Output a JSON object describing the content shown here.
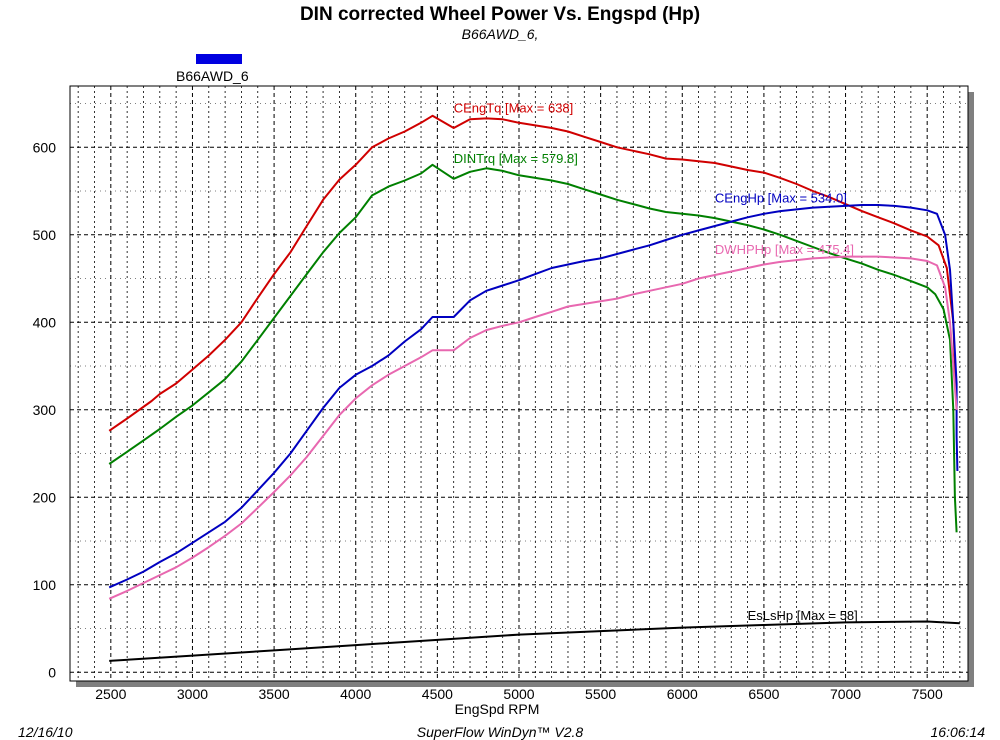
{
  "header": {
    "title": "DIN corrected Wheel Power Vs. Engspd (Hp)",
    "subtitle": "B66AWD_6,"
  },
  "legend": {
    "label": "B66AWD_6",
    "color": "#0000e0"
  },
  "footer": {
    "date": "12/16/10",
    "software": "SuperFlow WinDyn™ V2.8",
    "time": "16:06:14"
  },
  "chart_data": {
    "type": "line",
    "title": "DIN corrected Wheel Power Vs. Engspd (Hp)",
    "subtitle": "B66AWD_6,",
    "xlabel": "EngSpd  RPM",
    "ylabel": "",
    "xlim": [
      2250,
      7750
    ],
    "ylim": [
      -10,
      670
    ],
    "xticks": [
      2500,
      3000,
      3500,
      4000,
      4500,
      5000,
      5500,
      6000,
      6500,
      7000,
      7500
    ],
    "yticks": [
      0,
      100,
      200,
      300,
      400,
      500,
      600
    ],
    "grid": true,
    "legend_position": "top-left",
    "series": [
      {
        "name": "CEngTq [Max = 638]",
        "color": "#d00000",
        "points": [
          [
            2490,
            276
          ],
          [
            2600,
            290
          ],
          [
            2750,
            310
          ],
          [
            2800,
            318
          ],
          [
            2900,
            330
          ],
          [
            3000,
            346
          ],
          [
            3100,
            362
          ],
          [
            3200,
            380
          ],
          [
            3300,
            400
          ],
          [
            3400,
            428
          ],
          [
            3500,
            455
          ],
          [
            3600,
            480
          ],
          [
            3700,
            510
          ],
          [
            3800,
            540
          ],
          [
            3900,
            563
          ],
          [
            4000,
            580
          ],
          [
            4100,
            600
          ],
          [
            4200,
            610
          ],
          [
            4300,
            618
          ],
          [
            4400,
            628
          ],
          [
            4470,
            636
          ],
          [
            4600,
            622
          ],
          [
            4700,
            632
          ],
          [
            4800,
            633
          ],
          [
            4900,
            632
          ],
          [
            5000,
            628
          ],
          [
            5100,
            625
          ],
          [
            5200,
            622
          ],
          [
            5300,
            618
          ],
          [
            5400,
            612
          ],
          [
            5500,
            606
          ],
          [
            5600,
            600
          ],
          [
            5700,
            596
          ],
          [
            5800,
            592
          ],
          [
            5900,
            587
          ],
          [
            6000,
            586
          ],
          [
            6100,
            584
          ],
          [
            6200,
            582
          ],
          [
            6300,
            578
          ],
          [
            6400,
            574
          ],
          [
            6500,
            571
          ],
          [
            6600,
            565
          ],
          [
            6700,
            558
          ],
          [
            6800,
            550
          ],
          [
            6900,
            543
          ],
          [
            7000,
            535
          ],
          [
            7100,
            527
          ],
          [
            7200,
            520
          ],
          [
            7300,
            513
          ],
          [
            7400,
            505
          ],
          [
            7500,
            498
          ],
          [
            7570,
            488
          ],
          [
            7620,
            462
          ],
          [
            7660,
            400
          ],
          [
            7680,
            300
          ]
        ]
      },
      {
        "name": "DINTrq [Max = 579.8]",
        "color": "#008000",
        "points": [
          [
            2490,
            238
          ],
          [
            2600,
            252
          ],
          [
            2700,
            265
          ],
          [
            2800,
            278
          ],
          [
            2900,
            292
          ],
          [
            3000,
            305
          ],
          [
            3100,
            320
          ],
          [
            3200,
            335
          ],
          [
            3300,
            355
          ],
          [
            3400,
            380
          ],
          [
            3500,
            405
          ],
          [
            3600,
            430
          ],
          [
            3700,
            455
          ],
          [
            3800,
            480
          ],
          [
            3900,
            502
          ],
          [
            4000,
            520
          ],
          [
            4100,
            545
          ],
          [
            4200,
            555
          ],
          [
            4300,
            562
          ],
          [
            4400,
            570
          ],
          [
            4470,
            580
          ],
          [
            4600,
            564
          ],
          [
            4700,
            572
          ],
          [
            4800,
            576
          ],
          [
            4900,
            573
          ],
          [
            5000,
            568
          ],
          [
            5100,
            565
          ],
          [
            5200,
            562
          ],
          [
            5300,
            558
          ],
          [
            5400,
            552
          ],
          [
            5500,
            546
          ],
          [
            5600,
            540
          ],
          [
            5700,
            535
          ],
          [
            5800,
            530
          ],
          [
            5900,
            526
          ],
          [
            6000,
            524
          ],
          [
            6100,
            522
          ],
          [
            6200,
            519
          ],
          [
            6300,
            515
          ],
          [
            6400,
            511
          ],
          [
            6500,
            506
          ],
          [
            6600,
            500
          ],
          [
            6700,
            493
          ],
          [
            6800,
            486
          ],
          [
            6900,
            479
          ],
          [
            7000,
            473
          ],
          [
            7100,
            467
          ],
          [
            7200,
            460
          ],
          [
            7300,
            454
          ],
          [
            7400,
            447
          ],
          [
            7500,
            440
          ],
          [
            7550,
            432
          ],
          [
            7600,
            415
          ],
          [
            7640,
            380
          ],
          [
            7660,
            300
          ],
          [
            7670,
            200
          ],
          [
            7680,
            160
          ]
        ]
      },
      {
        "name": "CEngHp [Max = 534.0]",
        "color": "#0000c0",
        "points": [
          [
            2490,
            97
          ],
          [
            2600,
            106
          ],
          [
            2700,
            115
          ],
          [
            2800,
            126
          ],
          [
            2900,
            136
          ],
          [
            3000,
            148
          ],
          [
            3100,
            160
          ],
          [
            3200,
            172
          ],
          [
            3300,
            188
          ],
          [
            3400,
            208
          ],
          [
            3500,
            228
          ],
          [
            3600,
            250
          ],
          [
            3700,
            276
          ],
          [
            3800,
            302
          ],
          [
            3900,
            325
          ],
          [
            4000,
            340
          ],
          [
            4100,
            350
          ],
          [
            4200,
            362
          ],
          [
            4300,
            378
          ],
          [
            4400,
            392
          ],
          [
            4470,
            406
          ],
          [
            4600,
            406
          ],
          [
            4700,
            425
          ],
          [
            4800,
            436
          ],
          [
            4900,
            442
          ],
          [
            5000,
            448
          ],
          [
            5100,
            455
          ],
          [
            5200,
            462
          ],
          [
            5300,
            466
          ],
          [
            5400,
            470
          ],
          [
            5500,
            473
          ],
          [
            5600,
            478
          ],
          [
            5700,
            483
          ],
          [
            5800,
            488
          ],
          [
            5900,
            494
          ],
          [
            6000,
            500
          ],
          [
            6100,
            505
          ],
          [
            6200,
            510
          ],
          [
            6300,
            515
          ],
          [
            6400,
            520
          ],
          [
            6500,
            524
          ],
          [
            6600,
            527
          ],
          [
            6700,
            529
          ],
          [
            6800,
            531
          ],
          [
            6900,
            532
          ],
          [
            7000,
            533
          ],
          [
            7100,
            534
          ],
          [
            7200,
            534
          ],
          [
            7300,
            533
          ],
          [
            7400,
            531
          ],
          [
            7500,
            528
          ],
          [
            7560,
            524
          ],
          [
            7610,
            500
          ],
          [
            7640,
            460
          ],
          [
            7660,
            400
          ],
          [
            7680,
            330
          ],
          [
            7680,
            270
          ],
          [
            7685,
            230
          ]
        ]
      },
      {
        "name": "DWHPHp [Max = 475.4]",
        "color": "#e868b0",
        "points": [
          [
            2490,
            84
          ],
          [
            2600,
            93
          ],
          [
            2700,
            102
          ],
          [
            2800,
            111
          ],
          [
            2900,
            120
          ],
          [
            3000,
            131
          ],
          [
            3100,
            143
          ],
          [
            3200,
            156
          ],
          [
            3300,
            170
          ],
          [
            3400,
            188
          ],
          [
            3500,
            206
          ],
          [
            3600,
            225
          ],
          [
            3700,
            246
          ],
          [
            3800,
            270
          ],
          [
            3900,
            294
          ],
          [
            4000,
            313
          ],
          [
            4100,
            328
          ],
          [
            4200,
            340
          ],
          [
            4300,
            350
          ],
          [
            4400,
            360
          ],
          [
            4470,
            368
          ],
          [
            4600,
            368
          ],
          [
            4700,
            382
          ],
          [
            4800,
            391
          ],
          [
            4900,
            396
          ],
          [
            5000,
            400
          ],
          [
            5100,
            406
          ],
          [
            5200,
            412
          ],
          [
            5300,
            418
          ],
          [
            5400,
            421
          ],
          [
            5500,
            424
          ],
          [
            5600,
            427
          ],
          [
            5700,
            432
          ],
          [
            5800,
            436
          ],
          [
            5900,
            440
          ],
          [
            6000,
            444
          ],
          [
            6100,
            450
          ],
          [
            6200,
            454
          ],
          [
            6300,
            458
          ],
          [
            6400,
            462
          ],
          [
            6500,
            466
          ],
          [
            6600,
            469
          ],
          [
            6700,
            471
          ],
          [
            6800,
            473
          ],
          [
            6900,
            474
          ],
          [
            7000,
            475
          ],
          [
            7100,
            475
          ],
          [
            7200,
            475
          ],
          [
            7300,
            474
          ],
          [
            7400,
            473
          ],
          [
            7500,
            470
          ],
          [
            7560,
            465
          ],
          [
            7610,
            440
          ],
          [
            7640,
            400
          ],
          [
            7660,
            350
          ],
          [
            7680,
            300
          ]
        ]
      },
      {
        "name": "EsLsHp [Max = 58]",
        "color": "#000000",
        "points": [
          [
            2490,
            13
          ],
          [
            3000,
            19
          ],
          [
            3500,
            25
          ],
          [
            4000,
            31
          ],
          [
            4500,
            37
          ],
          [
            5000,
            43
          ],
          [
            5500,
            47
          ],
          [
            6000,
            51
          ],
          [
            6500,
            54
          ],
          [
            7000,
            57
          ],
          [
            7500,
            58
          ],
          [
            7700,
            56
          ]
        ]
      }
    ]
  }
}
